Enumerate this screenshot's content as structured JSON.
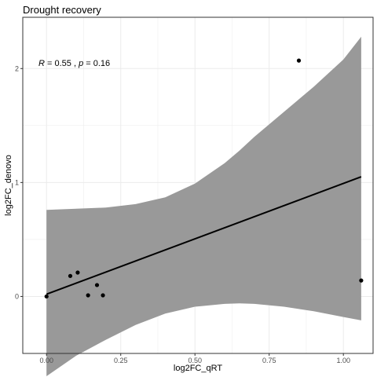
{
  "chart_data": {
    "type": "scatter",
    "title": "Drought recovery",
    "xlabel": "log2FC_qRT",
    "ylabel": "log2FC_denovo",
    "xlim": [
      -0.08,
      1.1
    ],
    "ylim": [
      -0.5,
      2.45
    ],
    "grid": true,
    "x_ticks": [
      0.0,
      0.25,
      0.5,
      0.75,
      1.0
    ],
    "x_tick_labels": [
      "0.00",
      "0.25",
      "0.50",
      "0.75",
      "1.00"
    ],
    "y_ticks": [
      0,
      1,
      2
    ],
    "y_tick_labels": [
      "0",
      "1",
      "2"
    ],
    "annotation": {
      "r_label": "R",
      "r_value": " = 0.55",
      "separator": " , ",
      "p_label": "p",
      "p_value": " = 0.16"
    },
    "points": [
      {
        "x": 0.0,
        "y": 0.0
      },
      {
        "x": 0.08,
        "y": 0.18
      },
      {
        "x": 0.105,
        "y": 0.21
      },
      {
        "x": 0.14,
        "y": 0.01
      },
      {
        "x": 0.17,
        "y": 0.1
      },
      {
        "x": 0.19,
        "y": 0.01
      },
      {
        "x": 0.85,
        "y": 2.07
      },
      {
        "x": 1.06,
        "y": 0.14
      }
    ],
    "fit_line": {
      "x": [
        0.0,
        1.06
      ],
      "y": [
        0.02,
        1.05
      ]
    },
    "confidence_band": {
      "x": [
        0.0,
        0.1,
        0.2,
        0.3,
        0.4,
        0.5,
        0.6,
        0.65,
        0.7,
        0.8,
        0.9,
        1.0,
        1.06
      ],
      "upper": [
        0.76,
        0.77,
        0.78,
        0.81,
        0.87,
        0.99,
        1.17,
        1.28,
        1.4,
        1.62,
        1.84,
        2.08,
        2.28
      ],
      "lower": [
        -0.7,
        -0.52,
        -0.38,
        -0.25,
        -0.15,
        -0.09,
        -0.065,
        -0.06,
        -0.065,
        -0.09,
        -0.13,
        -0.18,
        -0.21
      ]
    },
    "colors": {
      "points": "#000000",
      "line": "#000000",
      "band": "#999999",
      "grid": "#ebebeb",
      "panel_border": "#333333"
    }
  }
}
